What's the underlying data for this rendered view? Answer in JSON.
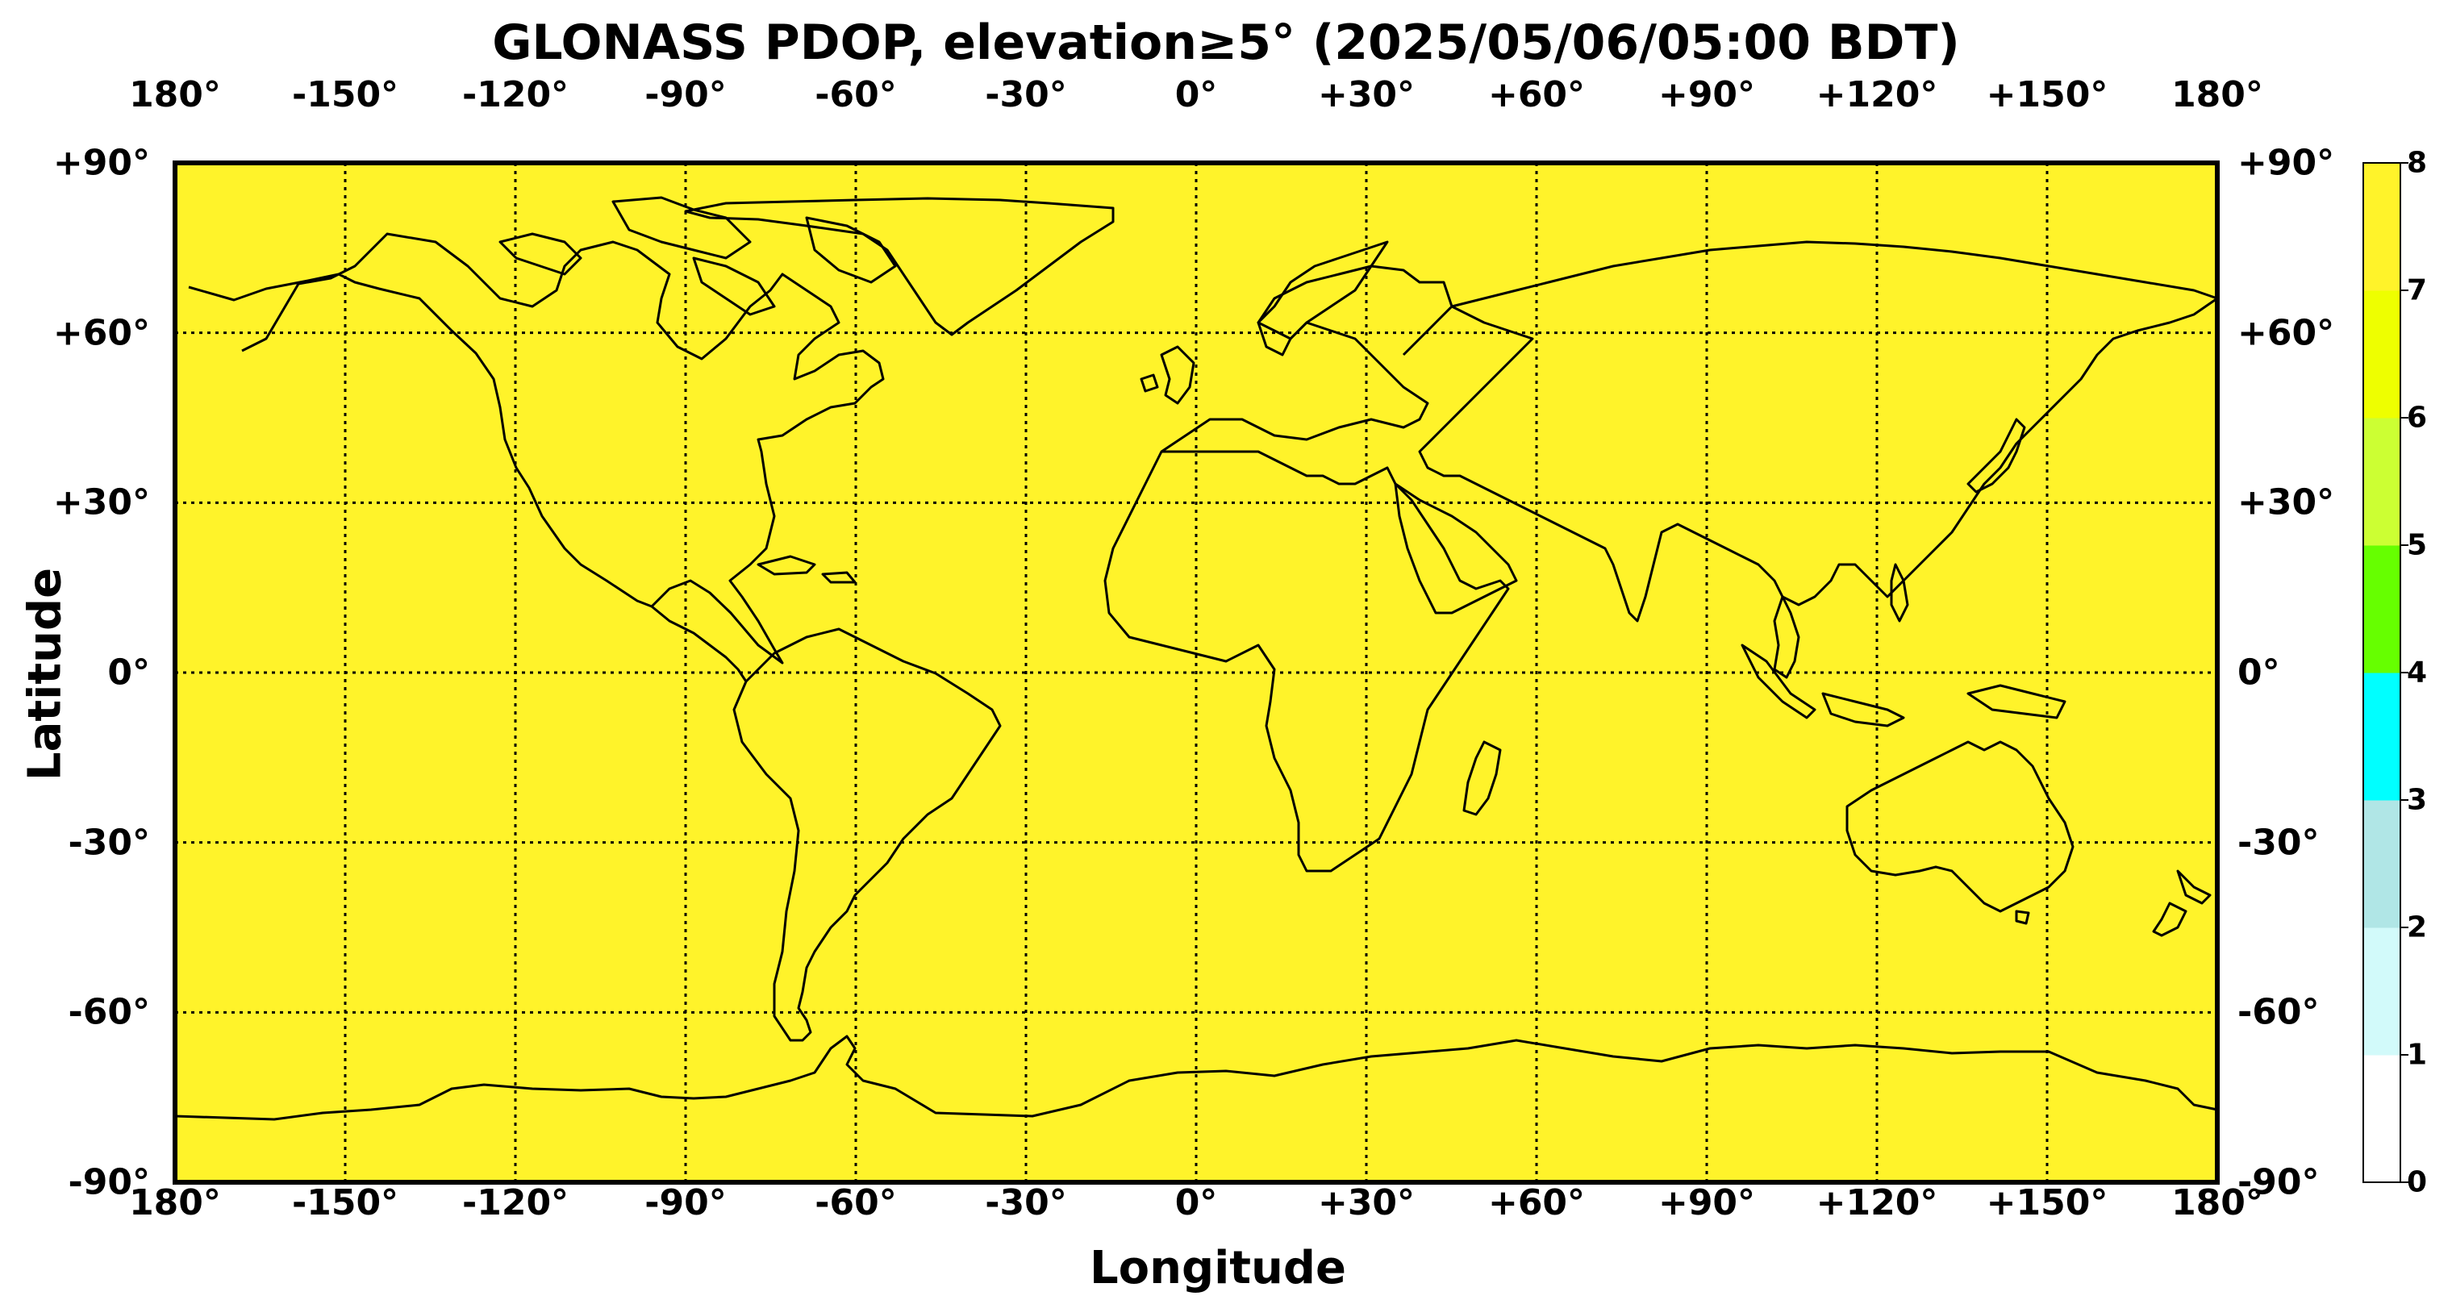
{
  "title": "GLONASS PDOP, elevation≥5° (2025/05/06/05:00 BDT)",
  "xlabel": "Longitude",
  "ylabel": "Latitude",
  "lon_ticks": [
    "180°",
    "-150°",
    "-120°",
    "-90°",
    "-60°",
    "-30°",
    "0°",
    "+30°",
    "+60°",
    "+90°",
    "+120°",
    "+150°",
    "180°"
  ],
  "lat_ticks": [
    "+90°",
    "+60°",
    "+30°",
    "0°",
    "-30°",
    "-60°",
    "-90°"
  ],
  "colorbar": {
    "ticks": [
      "0",
      "1",
      "2",
      "3",
      "4",
      "5",
      "6",
      "7",
      "8"
    ],
    "colors": [
      "#ffffff",
      "#d2fafa",
      "#b0e6e6",
      "#00ffff",
      "#66ff00",
      "#ccff33",
      "#eeff00",
      "#fff32a"
    ]
  },
  "chart_data": {
    "type": "heatmap",
    "title": "GLONASS PDOP, elevation≥5° (2025/05/06/05:00 BDT)",
    "xlabel": "Longitude",
    "ylabel": "Latitude",
    "xlim": [
      -180,
      180
    ],
    "ylim": [
      -90,
      90
    ],
    "grid": true,
    "field_value_range": [
      7,
      8
    ],
    "field_color": "#fff32a",
    "colorbar_range": [
      0,
      8
    ]
  },
  "map_background_color": "#fff32a"
}
